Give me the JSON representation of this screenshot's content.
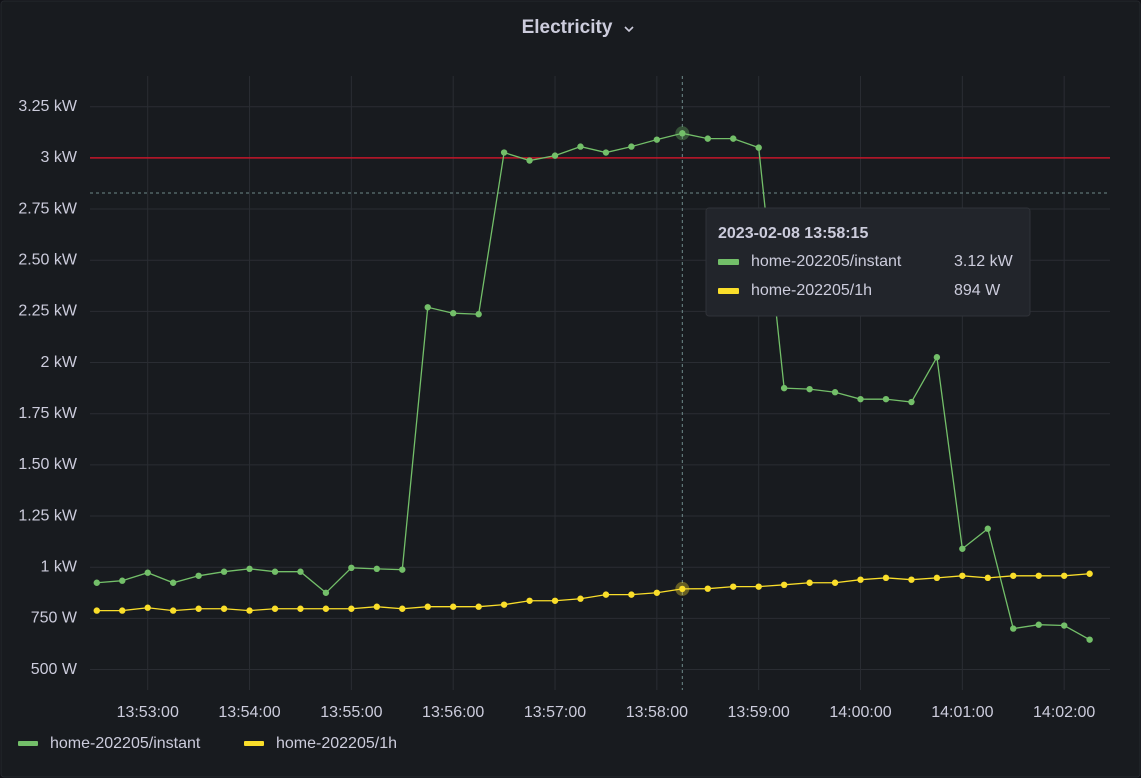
{
  "chart_data": {
    "type": "line",
    "title": "Electricity",
    "x": [
      "13:52:30",
      "13:52:45",
      "13:53:00",
      "13:53:15",
      "13:53:30",
      "13:53:45",
      "13:54:00",
      "13:54:15",
      "13:54:30",
      "13:54:45",
      "13:55:00",
      "13:55:15",
      "13:55:30",
      "13:55:45",
      "13:56:00",
      "13:56:15",
      "13:56:30",
      "13:56:45",
      "13:57:00",
      "13:57:15",
      "13:57:30",
      "13:57:45",
      "13:58:00",
      "13:58:15",
      "13:58:30",
      "13:58:45",
      "13:59:00",
      "13:59:15",
      "13:59:30",
      "13:59:45",
      "14:00:00",
      "14:00:15",
      "14:00:30",
      "14:00:45",
      "14:01:00",
      "14:01:15",
      "14:01:30",
      "14:01:45",
      "14:02:00",
      "14:02:15"
    ],
    "series": [
      {
        "name": "home-202205/instant",
        "color": "#73bf69",
        "values": [
          924,
          934,
          973,
          924,
          958,
          978,
          992,
          978,
          978,
          875,
          997,
          992,
          988,
          2270,
          2241,
          2236,
          3026,
          2987,
          3011,
          3055,
          3026,
          3055,
          3089,
          3120,
          3094,
          3094,
          3050,
          1875,
          1870,
          1855,
          1821,
          1821,
          1807,
          2026,
          1090,
          1188,
          700,
          719,
          715,
          646
        ]
      },
      {
        "name": "home-202205/1h",
        "color": "#fade2a",
        "values": [
          788,
          788,
          802,
          788,
          797,
          797,
          788,
          797,
          797,
          797,
          797,
          807,
          797,
          807,
          807,
          807,
          817,
          836,
          836,
          846,
          866,
          866,
          875,
          894,
          895,
          905,
          905,
          914,
          924,
          924,
          939,
          948,
          939,
          948,
          958,
          948,
          958,
          958,
          958,
          968
        ]
      }
    ],
    "xlim": [
      "13:52:26",
      "14:02:27"
    ],
    "xticks": [
      "13:53:00",
      "13:54:00",
      "13:55:00",
      "13:56:00",
      "13:57:00",
      "13:58:00",
      "13:59:00",
      "14:00:00",
      "14:01:00",
      "14:02:00"
    ],
    "ylim": [
      400,
      3400
    ],
    "yticks": [
      {
        "value": 500,
        "label": "500 W"
      },
      {
        "value": 750,
        "label": "750 W"
      },
      {
        "value": 1000,
        "label": "1 kW"
      },
      {
        "value": 1250,
        "label": "1.25 kW"
      },
      {
        "value": 1500,
        "label": "1.50 kW"
      },
      {
        "value": 1750,
        "label": "1.75 kW"
      },
      {
        "value": 2000,
        "label": "2 kW"
      },
      {
        "value": 2250,
        "label": "2.25 kW"
      },
      {
        "value": 2500,
        "label": "2.50 kW"
      },
      {
        "value": 2750,
        "label": "2.75 kW"
      },
      {
        "value": 3000,
        "label": "3 kW"
      },
      {
        "value": 3250,
        "label": "3.25 kW"
      }
    ],
    "grid": true,
    "threshold": {
      "value": 3000,
      "color": "#c4162a"
    },
    "legend": "bottom-left",
    "tooltip": {
      "time": "2023-02-08 13:58:15",
      "values": [
        3120,
        894
      ],
      "value_labels": [
        "3.12 kW",
        "894 W"
      ]
    }
  }
}
